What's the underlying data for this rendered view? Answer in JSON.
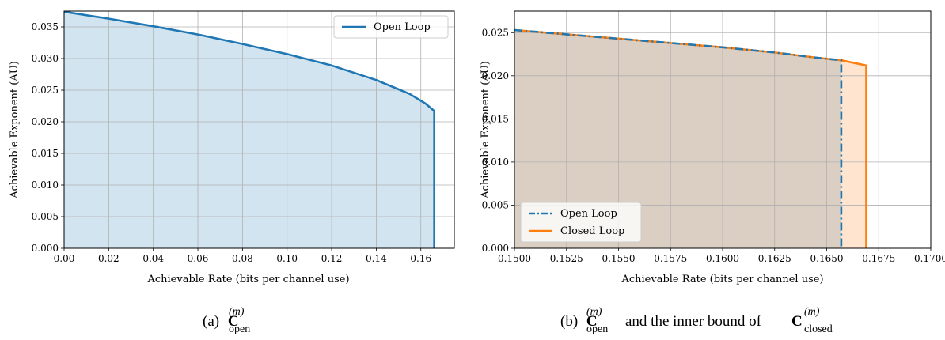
{
  "chart_data": [
    {
      "type": "area",
      "xlabel": "Achievable Rate (bits per channel use)",
      "ylabel": "Achievable Exponent (AU)",
      "xlim": [
        0.0,
        0.175
      ],
      "ylim": [
        0.0,
        0.0375
      ],
      "xticks": [
        "0.00",
        "0.02",
        "0.04",
        "0.06",
        "0.08",
        "0.10",
        "0.12",
        "0.14",
        "0.16"
      ],
      "yticks": [
        "0.000",
        "0.005",
        "0.010",
        "0.015",
        "0.020",
        "0.025",
        "0.030",
        "0.035"
      ],
      "grid": true,
      "legend_position": "top-right",
      "series": [
        {
          "name": "Open Loop",
          "color": "#1f77b4",
          "fill_color": "#1f77b4",
          "line_style": "solid",
          "x": [
            0.0,
            0.02,
            0.04,
            0.06,
            0.08,
            0.1,
            0.12,
            0.14,
            0.155,
            0.162,
            0.166,
            0.166
          ],
          "y": [
            0.0374,
            0.0363,
            0.0351,
            0.0338,
            0.0323,
            0.0307,
            0.0289,
            0.0266,
            0.0244,
            0.0229,
            0.0217,
            0.0
          ]
        }
      ],
      "caption": {
        "label": "(a)",
        "math": "C",
        "superscript": "(m)",
        "subscript": "open"
      }
    },
    {
      "type": "area",
      "xlabel": "Achievable Rate (bits per channel use)",
      "ylabel": "Achievable Exponent (AU)",
      "xlim": [
        0.15,
        0.17
      ],
      "ylim": [
        0.0,
        0.0275
      ],
      "xticks": [
        "0.1500",
        "0.1525",
        "0.1550",
        "0.1575",
        "0.1600",
        "0.1625",
        "0.1650",
        "0.1675",
        "0.1700"
      ],
      "yticks": [
        "0.000",
        "0.005",
        "0.010",
        "0.015",
        "0.020",
        "0.025"
      ],
      "grid": true,
      "legend_position": "lower-left",
      "series": [
        {
          "name": "Open Loop",
          "color": "#1f77b4",
          "fill_color": "#1f77b4",
          "line_style": "dashdot",
          "x": [
            0.15,
            0.1525,
            0.155,
            0.1575,
            0.16,
            0.1625,
            0.1645,
            0.1657,
            0.1657
          ],
          "y": [
            0.0253,
            0.0248,
            0.0243,
            0.0238,
            0.0233,
            0.0227,
            0.0221,
            0.0218,
            0.0
          ]
        },
        {
          "name": "Closed Loop",
          "color": "#ff7f0e",
          "fill_color": "#ff7f0e",
          "line_style": "solid",
          "x": [
            0.15,
            0.1525,
            0.155,
            0.1575,
            0.16,
            0.1625,
            0.1645,
            0.1657,
            0.1669,
            0.1669
          ],
          "y": [
            0.0253,
            0.0248,
            0.0243,
            0.0238,
            0.0233,
            0.0227,
            0.0221,
            0.0218,
            0.0212,
            0.0
          ]
        }
      ],
      "caption": {
        "label": "(b)",
        "math": "C",
        "superscript": "(m)",
        "subscript": "open",
        "middle": "and the inner bound of",
        "math2": "C",
        "superscript2": "(m)",
        "subscript2": "closed"
      }
    }
  ]
}
